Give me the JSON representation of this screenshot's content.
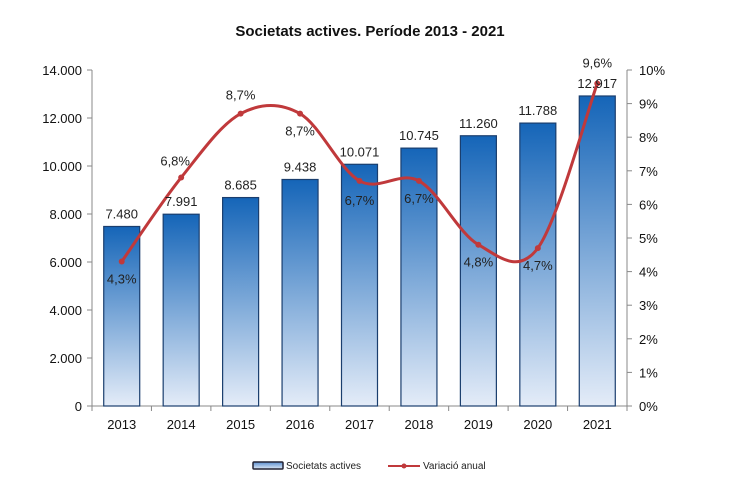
{
  "chart_data": {
    "type": "bar+line",
    "title": "Societats actives. Període 2013 - 2021",
    "categories": [
      "2013",
      "2014",
      "2015",
      "2016",
      "2017",
      "2018",
      "2019",
      "2020",
      "2021"
    ],
    "series": [
      {
        "name": "Societats actives",
        "type": "bar",
        "axis": "left",
        "values": [
          7480,
          7991,
          8685,
          9438,
          10071,
          10745,
          11260,
          11788,
          12917
        ],
        "labels": [
          "7.480",
          "7.991",
          "8.685",
          "9.438",
          "10.071",
          "10.745",
          "11.260",
          "11.788",
          "12.917"
        ],
        "color": "#1f6fc0"
      },
      {
        "name": "Variació anual",
        "type": "line",
        "axis": "right",
        "smooth": true,
        "values": [
          4.3,
          6.8,
          8.7,
          8.7,
          6.7,
          6.7,
          4.8,
          4.7,
          9.6
        ],
        "labels": [
          "4,3%",
          "6,8%",
          "8,7%",
          "8,7%",
          "6,7%",
          "6,7%",
          "4,8%",
          "4,7%",
          "9,6%"
        ],
        "color": "#c0393b"
      }
    ],
    "y_left": {
      "ylim": [
        0,
        14000
      ],
      "ticks": [
        "0",
        "2.000",
        "4.000",
        "6.000",
        "8.000",
        "10.000",
        "12.000",
        "14.000"
      ]
    },
    "y_right": {
      "ylim": [
        0,
        10
      ],
      "ticks": [
        "0%",
        "1%",
        "2%",
        "3%",
        "4%",
        "5%",
        "6%",
        "7%",
        "8%",
        "9%",
        "10%"
      ]
    },
    "grid": false,
    "legend": "bottom"
  }
}
